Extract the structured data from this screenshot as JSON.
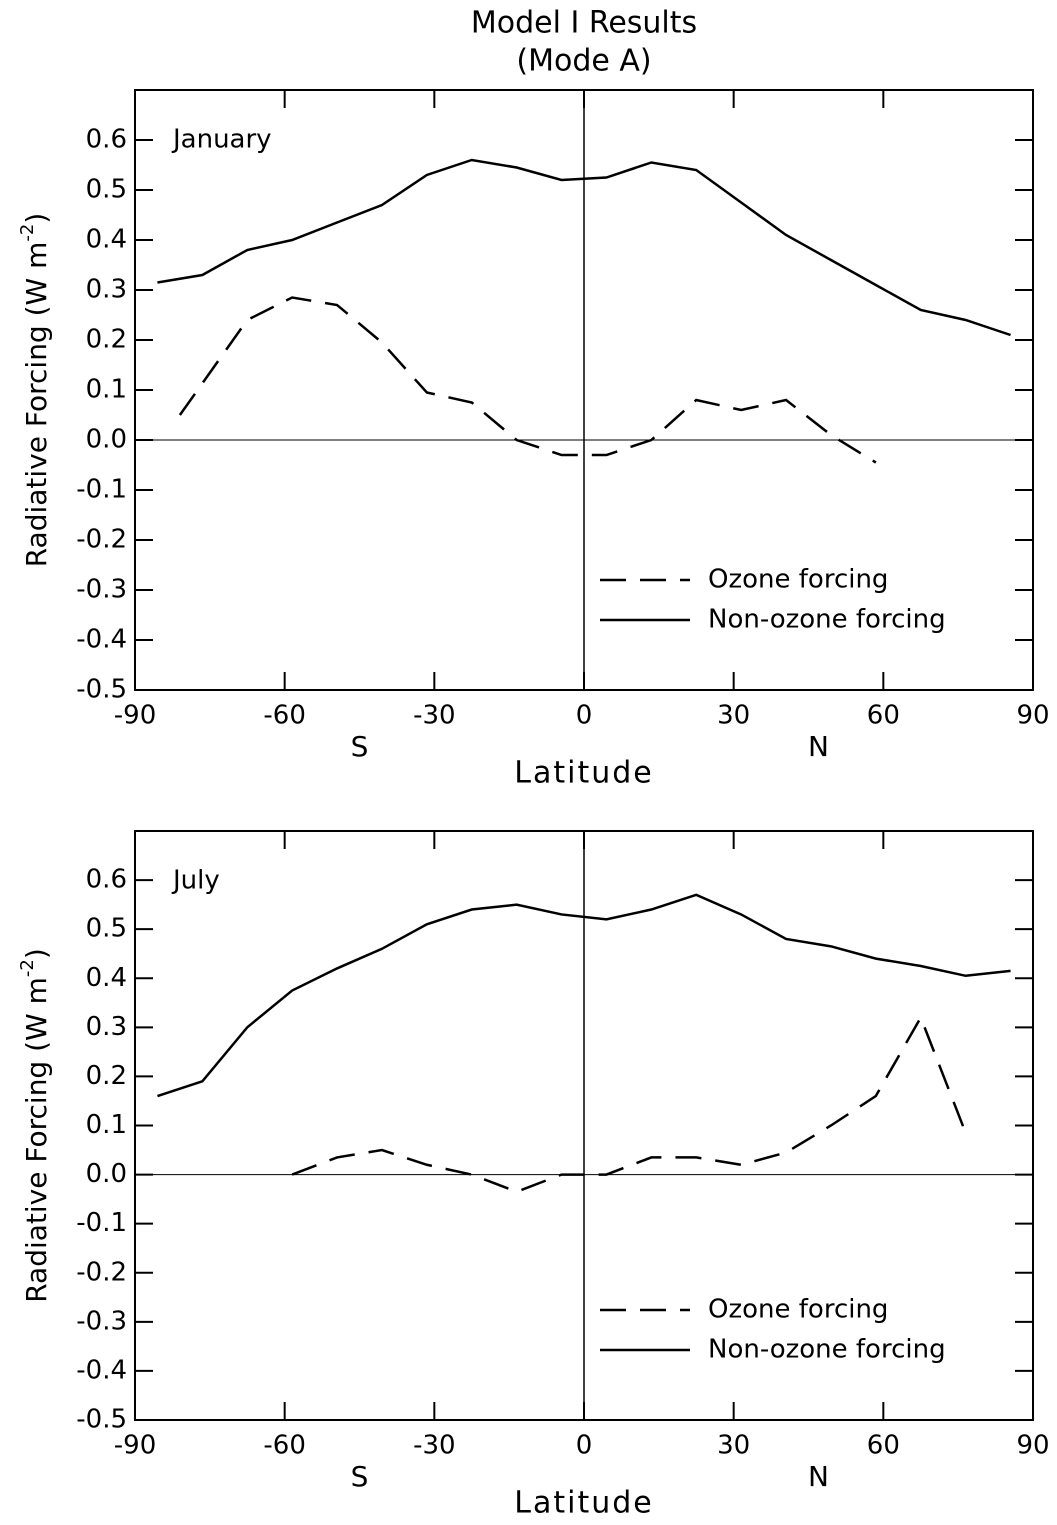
{
  "title": "Model I Results",
  "subtitle": "(Mode A)",
  "chart_data": [
    {
      "type": "line",
      "annotation": "January",
      "xlabel": "Latitude",
      "hemispheres": [
        "S",
        "N"
      ],
      "ylabel_parts": [
        "Radiative Forcing (W m",
        "-2",
        ")"
      ],
      "xlim": [
        -90,
        90
      ],
      "ylim": [
        -0.5,
        0.7
      ],
      "xticks": [
        -90,
        -60,
        -30,
        0,
        30,
        60,
        90
      ],
      "yticks": [
        -0.5,
        -0.4,
        -0.3,
        -0.2,
        -0.1,
        {
          "value": 0,
          "label": "0.0"
        },
        0.1,
        0.2,
        0.3,
        0.4,
        0.5,
        0.6
      ],
      "legend": "lower right",
      "series": [
        {
          "name": "Ozone forcing",
          "color": "#000000",
          "dash": true,
          "x": [
            -81,
            -67.5,
            -58.5,
            -49.5,
            -40.5,
            -31.5,
            -22.5,
            -13.5,
            -4.5,
            4.5,
            13.5,
            22.5,
            31.5,
            40.5,
            49.5,
            58.5
          ],
          "values": [
            0.05,
            0.24,
            0.285,
            0.27,
            0.195,
            0.095,
            0.075,
            0,
            -0.03,
            -0.03,
            0,
            0.08,
            0.06,
            0.08,
            0.01,
            -0.045
          ]
        },
        {
          "name": "Non-ozone forcing",
          "color": "#000000",
          "dash": false,
          "x": [
            -85.5,
            -76.5,
            -67.5,
            -58.5,
            -49.5,
            -40.5,
            -31.5,
            -22.5,
            -13.5,
            -4.5,
            4.5,
            13.5,
            22.5,
            31.5,
            40.5,
            49.5,
            58.5,
            67.5,
            76.5,
            85.5
          ],
          "values": [
            0.315,
            0.33,
            0.38,
            0.4,
            0.435,
            0.47,
            0.53,
            0.56,
            0.545,
            0.52,
            0.525,
            0.555,
            0.54,
            0.475,
            0.41,
            0.36,
            0.31,
            0.26,
            0.24,
            0.21
          ]
        }
      ]
    },
    {
      "type": "line",
      "annotation": "July",
      "xlabel": "Latitude",
      "hemispheres": [
        "S",
        "N"
      ],
      "ylabel_parts": [
        "Radiative Forcing (W m",
        "-2",
        ")"
      ],
      "xlim": [
        -90,
        90
      ],
      "ylim": [
        -0.5,
        0.7
      ],
      "xticks": [
        -90,
        -60,
        -30,
        0,
        30,
        60,
        90
      ],
      "yticks": [
        -0.5,
        -0.4,
        -0.3,
        -0.2,
        -0.1,
        {
          "value": 0,
          "label": "0.0"
        },
        0.1,
        0.2,
        0.3,
        0.4,
        0.5,
        0.6
      ],
      "legend": "lower right",
      "series": [
        {
          "name": "Ozone forcing",
          "color": "#000000",
          "dash": true,
          "x": [
            -58.5,
            -49.5,
            -40.5,
            -31.5,
            -22.5,
            -13.5,
            -4.5,
            4.5,
            13.5,
            22.5,
            31.5,
            40.5,
            49.5,
            58.5,
            67.5,
            76.5
          ],
          "values": [
            0,
            0.035,
            0.05,
            0.02,
            0,
            -0.035,
            0,
            0,
            0.035,
            0.035,
            0.02,
            0.045,
            0.1,
            0.16,
            0.32,
            0.085
          ]
        },
        {
          "name": "Non-ozone forcing",
          "color": "#000000",
          "dash": false,
          "x": [
            -85.5,
            -76.5,
            -67.5,
            -58.5,
            -49.5,
            -40.5,
            -31.5,
            -22.5,
            -13.5,
            -4.5,
            4.5,
            13.5,
            22.5,
            31.5,
            40.5,
            49.5,
            58.5,
            67.5,
            76.5,
            85.5
          ],
          "values": [
            0.16,
            0.19,
            0.3,
            0.375,
            0.42,
            0.46,
            0.51,
            0.54,
            0.55,
            0.53,
            0.52,
            0.54,
            0.57,
            0.53,
            0.48,
            0.465,
            0.44,
            0.425,
            0.405,
            0.415
          ]
        }
      ]
    }
  ]
}
